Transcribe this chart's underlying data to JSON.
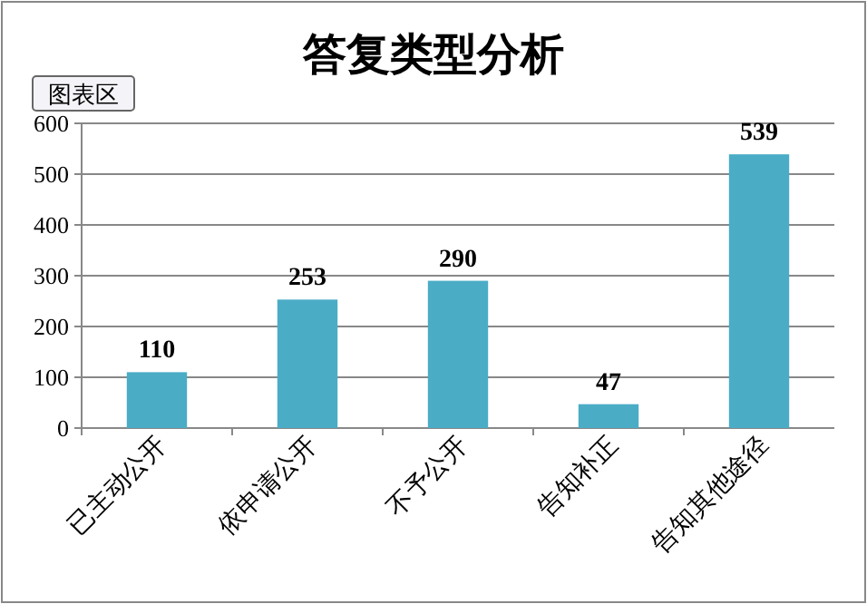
{
  "chart_data": {
    "type": "bar",
    "title": "答复类型分析",
    "categories": [
      "已主动公开",
      "依申请公开",
      "不予公开",
      "告知补正",
      "告知其他途径"
    ],
    "values": [
      110,
      253,
      290,
      47,
      539
    ],
    "color": "#4bacc6",
    "ylim": [
      0,
      600
    ],
    "yticks": [
      0,
      100,
      200,
      300,
      400,
      500,
      600
    ],
    "grid": "y",
    "data_labels": true,
    "annotations": [
      "图表区"
    ]
  }
}
